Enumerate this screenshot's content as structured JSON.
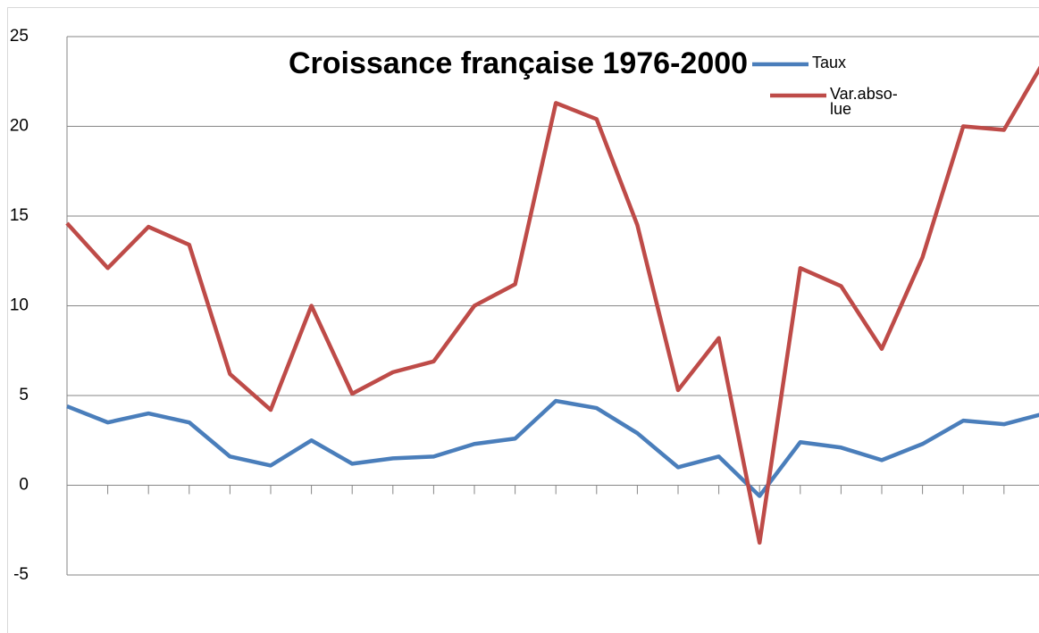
{
  "chart_data": {
    "type": "line",
    "title": "Croissance française 1976-2000",
    "categories": [
      null,
      null,
      null,
      null,
      null,
      null,
      null,
      null,
      null,
      null,
      null,
      null,
      null,
      null,
      null,
      null,
      null,
      null,
      null,
      null,
      null,
      null,
      null,
      null,
      null
    ],
    "series": [
      {
        "name": "Taux",
        "color": "#4a7ebb",
        "values": [
          4.4,
          3.5,
          4.0,
          3.5,
          1.6,
          1.1,
          2.5,
          1.2,
          1.5,
          1.6,
          2.3,
          2.6,
          4.7,
          4.3,
          2.9,
          1.0,
          1.6,
          -0.6,
          2.4,
          2.1,
          1.4,
          2.3,
          3.6,
          3.4,
          4.0
        ]
      },
      {
        "name": "Var.abso-lue",
        "color": "#be4b48",
        "values": [
          14.6,
          12.1,
          14.4,
          13.4,
          6.2,
          4.2,
          10.0,
          5.1,
          6.3,
          6.9,
          10.0,
          11.2,
          21.3,
          20.4,
          14.5,
          5.3,
          8.2,
          -3.2,
          12.1,
          11.1,
          7.6,
          12.7,
          20.0,
          19.8,
          23.7
        ]
      }
    ],
    "ylim": [
      -5,
      25
    ],
    "yticks": [
      -5,
      0,
      5,
      10,
      15,
      20,
      25
    ],
    "grid": true,
    "legend": "top-right"
  }
}
